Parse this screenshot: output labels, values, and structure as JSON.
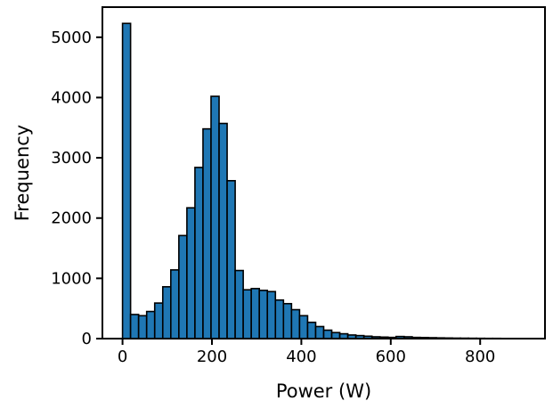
{
  "chart_data": {
    "type": "bar",
    "title": "",
    "xlabel": "Power (W)",
    "ylabel": "Frequency",
    "xlim": [
      -45,
      945
    ],
    "ylim": [
      0,
      5500
    ],
    "xticks": [
      0,
      200,
      400,
      600,
      800
    ],
    "yticks": [
      0,
      1000,
      2000,
      3000,
      4000,
      5000
    ],
    "grid": false,
    "bar_color": "#1f77b4",
    "edge_color": "#000000",
    "bin_width": 18,
    "bins_start": [
      0,
      18,
      36,
      54,
      72,
      90,
      108,
      126,
      144,
      162,
      180,
      198,
      216,
      234,
      252,
      270,
      288,
      306,
      324,
      342,
      360,
      378,
      396,
      414,
      432,
      450,
      468,
      486,
      504,
      522,
      540,
      558,
      576,
      594,
      612,
      630,
      648,
      666,
      684,
      702,
      720,
      738,
      756,
      774,
      792,
      810,
      828,
      846,
      864,
      882
    ],
    "values": [
      5230,
      400,
      380,
      450,
      590,
      860,
      1140,
      1710,
      2170,
      2840,
      3480,
      4020,
      3570,
      2620,
      1130,
      810,
      830,
      800,
      780,
      640,
      580,
      480,
      380,
      270,
      200,
      140,
      100,
      80,
      60,
      50,
      40,
      30,
      25,
      20,
      35,
      30,
      20,
      18,
      15,
      12,
      10,
      8,
      7,
      6,
      5,
      4,
      4,
      3,
      3,
      2
    ]
  }
}
